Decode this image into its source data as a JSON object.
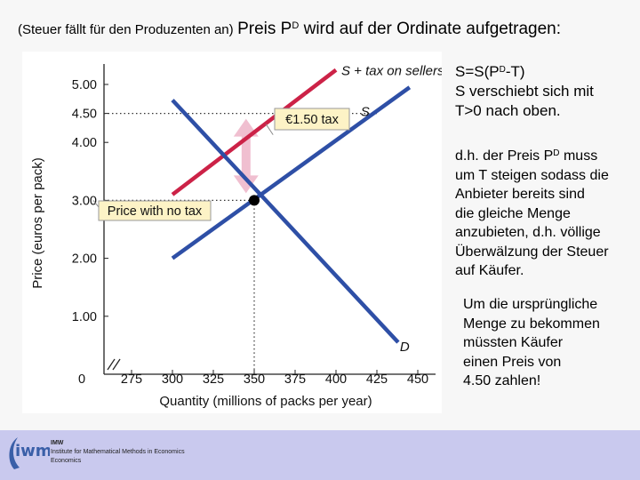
{
  "header": {
    "title_small": "(Steuer fällt für den Produzenten an)",
    "title_big_before": "Preis P",
    "title_sup": "D",
    "title_big_after": " wird auf der Ordinate aufgetragen:"
  },
  "notes": {
    "shift": {
      "line1_before": "S=S(P",
      "line1_sup": "D",
      "line1_after": "-T)",
      "line2": "S verschiebt sich mit",
      "line3": "T>0 nach oben."
    },
    "price": {
      "line1_before": "d.h. der Preis P",
      "line1_sup": "D",
      "line1_after": " muss",
      "line2": "um T steigen sodass die",
      "line3": "Anbieter bereits sind",
      "line4": "die gleiche Menge",
      "line5": "anzubieten, d.h. völlige",
      "line6": "Überwälzung der Steuer",
      "line7": "auf Käufer."
    },
    "quantity": {
      "line1": "Um die ursprüngliche",
      "line2": "Menge zu bekommen",
      "line3": "müssten Käufer",
      "line4": "einen Preis von",
      "line5": "4.50 zahlen!"
    }
  },
  "footer": {
    "logo_mark": "iwm",
    "logo_small": "IMW",
    "institute": "Institute for Mathematical Methods in Economics",
    "institute_sub": "Economics"
  },
  "colors": {
    "demand": "#2e4fa6",
    "supply": "#2e4fa6",
    "supply_tax": "#cc2247",
    "arrow": "#f0bfd0",
    "label_bg": "#fdf3c6",
    "guide": "#333333",
    "footer": "#c9c9ee"
  },
  "chart_data": {
    "type": "line",
    "title": "",
    "xlabel": "Quantity (millions of packs per year)",
    "ylabel": "Price (euros per pack)",
    "xlim": [
      265,
      460
    ],
    "ylim": [
      0,
      5.4
    ],
    "axis_break": true,
    "x_origin_label": "0",
    "x_ticks": [
      275,
      300,
      325,
      350,
      375,
      400,
      425,
      450
    ],
    "x_tick_labels": [
      "275",
      "300",
      "325",
      "350",
      "375",
      "400",
      "425",
      "450"
    ],
    "y_ticks": [
      1,
      2,
      3,
      4,
      4.5,
      5
    ],
    "y_tick_labels": [
      "1.00",
      "2.00",
      "3.00",
      "4.00",
      "4.50",
      "5.00"
    ],
    "series": [
      {
        "name": "S + tax on sellers",
        "x": [
          300,
          400
        ],
        "y": [
          3.1,
          5.25
        ]
      },
      {
        "name": "S",
        "x": [
          300,
          445
        ],
        "y": [
          2.0,
          4.95
        ]
      },
      {
        "name": "D",
        "x": [
          300,
          438
        ],
        "y": [
          4.73,
          0.55
        ]
      }
    ],
    "equilibrium": {
      "x": 350,
      "y": 3.0
    },
    "guides": [
      {
        "y": 4.5,
        "x_to": 425
      },
      {
        "y": 3.0,
        "x_to": 350
      },
      {
        "x": 350,
        "y_to": 3.0
      }
    ],
    "annotations": {
      "tax_label": "€1.50 tax",
      "no_tax_label": "Price with no tax",
      "tax_arrow_from": 3.0,
      "tax_arrow_to": 4.5,
      "tax_arrow_x": 345
    }
  }
}
